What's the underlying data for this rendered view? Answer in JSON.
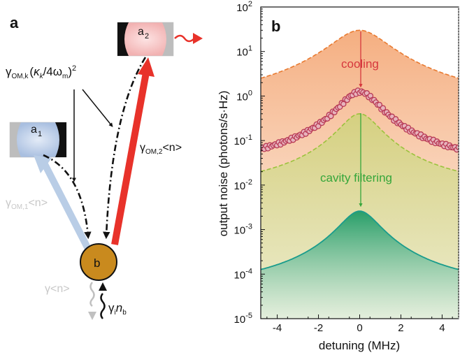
{
  "panel_a": {
    "label": "a",
    "cavity1_label": "a",
    "cavity1_sub": "1",
    "cavity2_label": "a",
    "cavity2_sub": "2",
    "mode_label": "b",
    "rate_top": "γ",
    "rate_top_sub": "OM,k",
    "rate_top_paren_open": "(",
    "rate_top_kappa": "κ",
    "rate_top_kappa_sub": "k",
    "rate_top_mid": "/4ω",
    "rate_top_m_sub": "m",
    "rate_top_close": ")",
    "rate_top_sup": "2",
    "rate_om2": "γ",
    "rate_om2_sub": "OM,2",
    "rate_om2_n": "<n>",
    "rate_om1": "γ",
    "rate_om1_sub": "OM,1",
    "rate_om1_n": "<n>",
    "rate_gamma_n": "γ<n>",
    "rate_gi": "γ",
    "rate_gi_sub": "i",
    "rate_nb": "n",
    "rate_nb_sub": "b",
    "colors": {
      "cavity1": "#b9cbe6",
      "cavity2": "#f5c4c4",
      "mode": "#c98a1e",
      "red_arrow": "#e8322a",
      "blue_arrow": "#b9cde6"
    }
  },
  "panel_b": {
    "label": "b",
    "annot_cooling": "cooling",
    "annot_filtering": "cavity filtering",
    "annot_cooling_color": "#d6373c",
    "annot_filtering_color": "#35a63a"
  },
  "chart_data": {
    "type": "line",
    "title": "",
    "xlabel": "detuning (MHz)",
    "ylabel": "output noise (photons/s·Hz)",
    "xlim": [
      -4.8,
      4.8
    ],
    "ylim_exponent": [
      -5,
      2
    ],
    "y_scale": "log",
    "x_ticks": [
      "-4",
      "-2",
      "0",
      "2",
      "4"
    ],
    "y_ticks": [
      {
        "base": "10",
        "exp": "-5"
      },
      {
        "base": "10",
        "exp": "-4"
      },
      {
        "base": "10",
        "exp": "-3"
      },
      {
        "base": "10",
        "exp": "-2"
      },
      {
        "base": "10",
        "exp": "-1"
      },
      {
        "base": "10",
        "exp": "0"
      },
      {
        "base": "10",
        "exp": "1"
      },
      {
        "base": "10",
        "exp": "2"
      }
    ],
    "series": [
      {
        "style": "dashed-orange",
        "peak": 30,
        "baseline": 0.5,
        "half_width": 1.3
      },
      {
        "style": "measured-circles",
        "peak": 1.25,
        "baseline": 0.024,
        "half_width": 0.9
      },
      {
        "style": "dashed-green",
        "peak": 0.4,
        "baseline": 0.007,
        "half_width": 0.9
      },
      {
        "style": "solid-teal",
        "peak": 0.0026,
        "baseline": 4e-05,
        "half_width": 0.9
      }
    ]
  }
}
